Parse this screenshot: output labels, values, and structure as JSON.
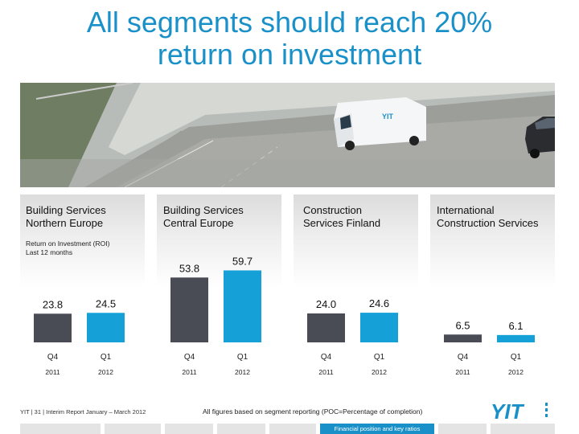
{
  "title_line1": "All segments should reach 20%",
  "title_line2": "return on investment",
  "roi_label_line1": "Return on Investment (ROI)",
  "roi_label_line2": "Last 12 months",
  "footer": {
    "left_text": "YIT  |  31  |  Interim Report January – March 2012",
    "note": "All figures based on segment reporting (POC=Percentage of completion)",
    "tab_label": "Financial position and key ratios",
    "logo_text": "YIT"
  },
  "colors": {
    "title": "#1a90c8",
    "q4_bar": "#4a4c55",
    "q1_bar": "#16a0d8",
    "tab": "#1a90c8"
  },
  "chart_data": [
    {
      "type": "bar",
      "title": "Building Services Northern Europe",
      "title_lines": [
        "Building Services",
        "Northern Europe"
      ],
      "categories": [
        "Q4",
        "Q1"
      ],
      "years": [
        "2011",
        "2012"
      ],
      "values": [
        23.8,
        24.5
      ]
    },
    {
      "type": "bar",
      "title": "Building Services Central Europe",
      "title_lines": [
        "Building Services",
        "Central Europe"
      ],
      "categories": [
        "Q4",
        "Q1"
      ],
      "years": [
        "2011",
        "2012"
      ],
      "values": [
        53.8,
        59.7
      ]
    },
    {
      "type": "bar",
      "title": "Construction Services Finland",
      "title_lines": [
        "Construction",
        "Services Finland"
      ],
      "categories": [
        "Q4",
        "Q1"
      ],
      "years": [
        "2011",
        "2012"
      ],
      "values": [
        24.0,
        24.6
      ]
    },
    {
      "type": "bar",
      "title": "International Construction Services",
      "title_lines": [
        "International",
        "Construction Services"
      ],
      "categories": [
        "Q4",
        "Q1"
      ],
      "years": [
        "2011",
        "2012"
      ],
      "values": [
        6.5,
        6.1
      ]
    }
  ]
}
